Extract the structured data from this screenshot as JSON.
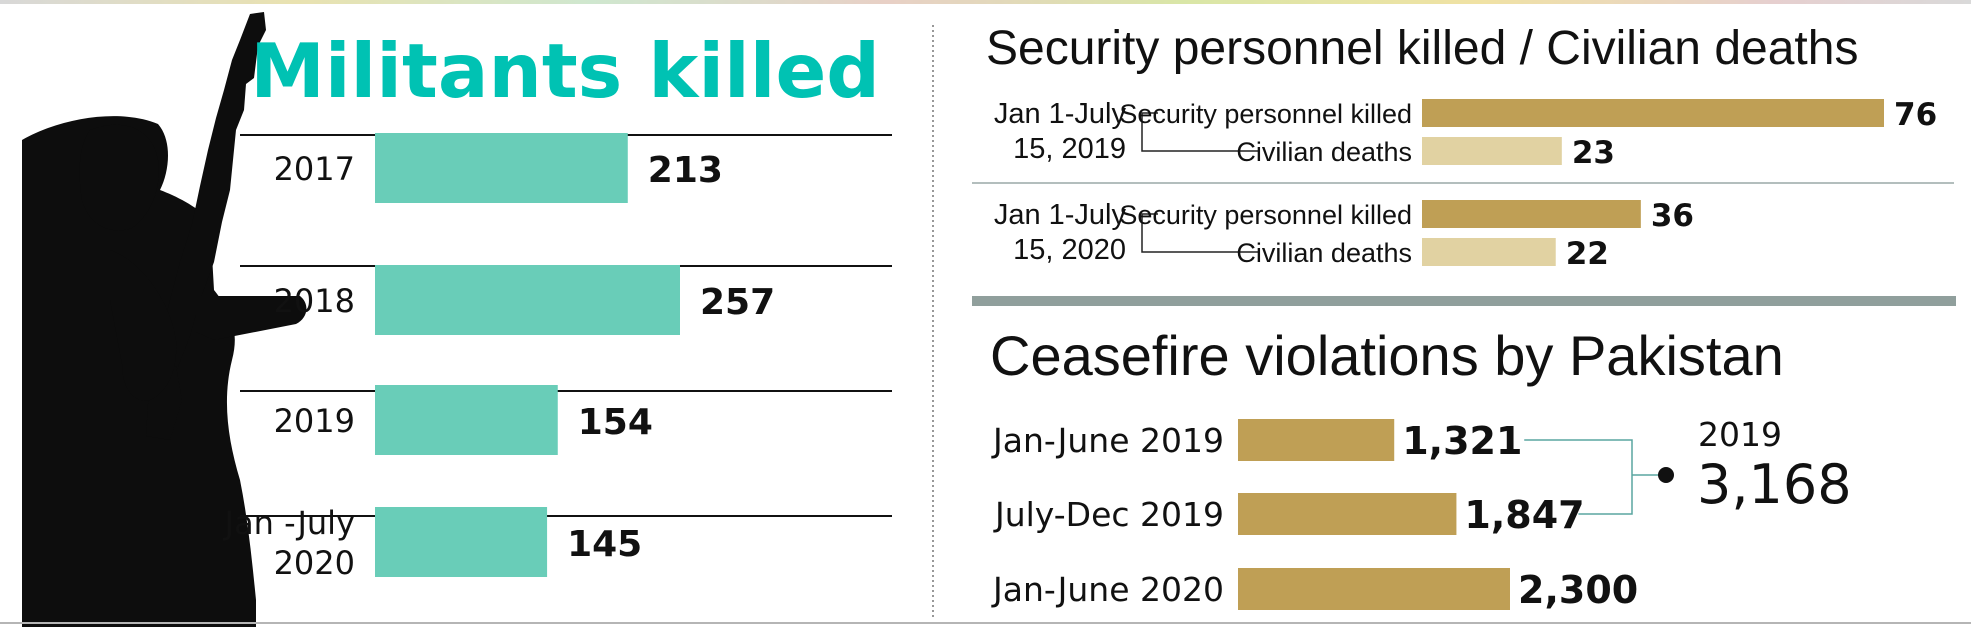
{
  "colors": {
    "teal": "#00c2b3",
    "teal_bar": "#69cdb8",
    "gold": "#bf9f55",
    "light_gold": "#e1d2a2",
    "divider": "#909f9c"
  },
  "left_panel": {
    "title": "Militants killed",
    "chart_data": {
      "type": "bar",
      "orientation": "horizontal",
      "categories": [
        "2017",
        "2018",
        "2019",
        "Jan -July 2020"
      ],
      "category_lines": [
        [
          "2017"
        ],
        [
          "2018"
        ],
        [
          "2019"
        ],
        [
          "Jan -July",
          "2020"
        ]
      ],
      "values": [
        213,
        257,
        154,
        145
      ],
      "value_labels": [
        "213",
        "257",
        "154",
        "145"
      ],
      "title": "Militants killed",
      "xlabel": "",
      "ylabel": "",
      "color": "#69cdb8"
    }
  },
  "right_top": {
    "title": "Security personnel killed / Civilian deaths",
    "chart_data": {
      "type": "bar",
      "orientation": "horizontal",
      "groups": [
        {
          "period_lines": [
            "Jan 1-July",
            "15, 2019"
          ]
        },
        {
          "period_lines": [
            "Jan 1-July",
            "15, 2020"
          ]
        }
      ],
      "categories": [
        "Jan 1-July 15, 2019",
        "Jan 1-July 15, 2020"
      ],
      "series": [
        {
          "name": "Security personnel killed",
          "values": [
            76,
            36
          ],
          "labels": [
            "76",
            "36"
          ],
          "color": "#bf9f55"
        },
        {
          "name": "Civilian deaths",
          "values": [
            23,
            22
          ],
          "labels": [
            "23",
            "22"
          ],
          "color": "#e1d2a2"
        }
      ],
      "title": "Security personnel killed / Civilian deaths"
    }
  },
  "right_bottom": {
    "title": "Ceasefire violations by Pakistan",
    "chart_data": {
      "type": "bar",
      "orientation": "horizontal",
      "categories": [
        "Jan-June 2019",
        "July-Dec 2019",
        "Jan-June 2020"
      ],
      "values": [
        1321,
        1847,
        2300
      ],
      "value_labels": [
        "1,321",
        "1,847",
        "2,300"
      ],
      "title": "Ceasefire violations by Pakistan",
      "color": "#bf9f55",
      "annotation": {
        "label": "2019",
        "value": "3,168"
      }
    }
  }
}
